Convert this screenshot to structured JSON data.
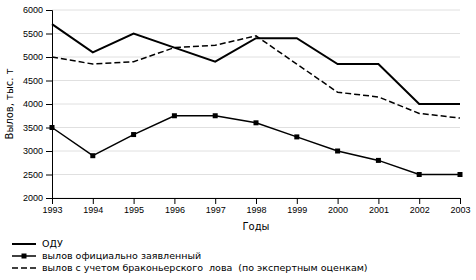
{
  "chart_data": {
    "type": "line",
    "x": [
      1993,
      1994,
      1995,
      1996,
      1997,
      1998,
      1999,
      2000,
      2001,
      2002,
      2003
    ],
    "xlim": [
      1993,
      2003
    ],
    "xticks": [
      1993,
      1994,
      1995,
      1996,
      1997,
      1998,
      1999,
      2000,
      2001,
      2002,
      2003
    ],
    "ylim": [
      2000,
      6000
    ],
    "yticks": [
      2000,
      2500,
      3000,
      3500,
      4000,
      4500,
      5000,
      5500,
      6000
    ],
    "xlabel": "Годы",
    "ylabel": "Вылов, тыс. т",
    "grid": true,
    "legend": "bottom",
    "series": [
      {
        "name": "ОДУ",
        "color": "#000000",
        "line_style": "solid",
        "marker": "none",
        "values": [
          5700,
          5100,
          5500,
          5200,
          4900,
          5400,
          5400,
          4850,
          4850,
          4000,
          4000
        ]
      },
      {
        "name": "вылов официально заявленный",
        "color": "#000000",
        "line_style": "solid",
        "marker": "square",
        "values": [
          3500,
          2900,
          3350,
          3750,
          3750,
          3600,
          3300,
          3000,
          2800,
          2500,
          2500
        ]
      },
      {
        "name": "вылов с учетом браконьерского  лова  (по экспертным оценкам)",
        "color": "#000000",
        "line_style": "dashed",
        "marker": "none",
        "values": [
          5000,
          4850,
          4900,
          5200,
          5250,
          5450,
          4850,
          4250,
          4150,
          3800,
          3700
        ]
      }
    ]
  }
}
